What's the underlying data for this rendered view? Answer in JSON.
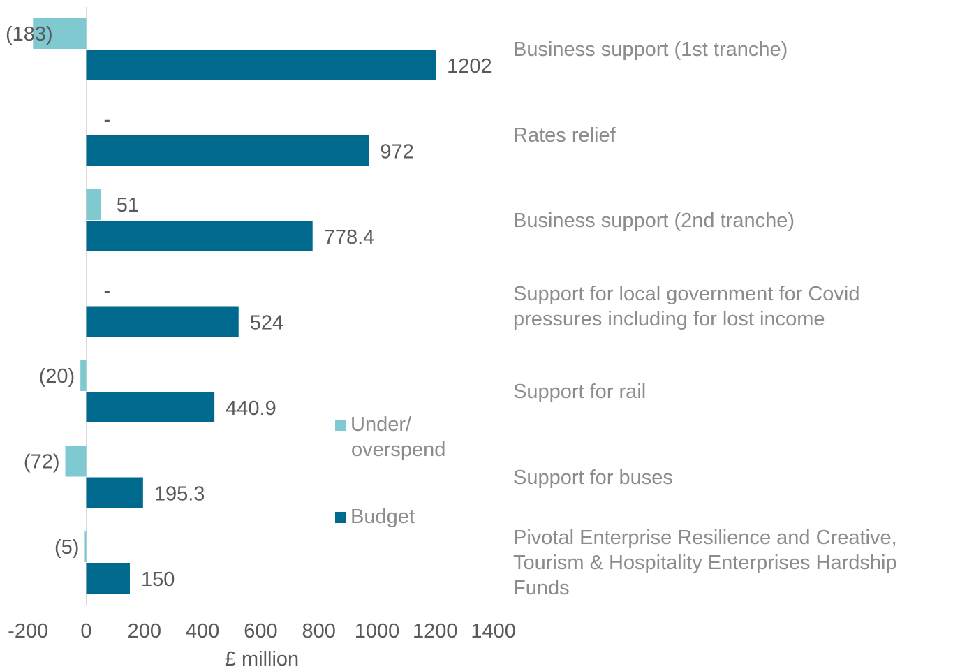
{
  "chart_data": {
    "type": "bar",
    "orientation": "horizontal",
    "categories": [
      "Business support (1st tranche)",
      "Rates relief",
      "Business support (2nd tranche)",
      "Support for local government for Covid pressures including for lost income",
      "Support for rail",
      "Support for buses",
      "Pivotal Enterprise Resilience and  Creative, Tourism & Hospitality Enterprises Hardship Funds"
    ],
    "category_label_lines": [
      [
        "Business support (1st tranche)"
      ],
      [
        "Rates relief"
      ],
      [
        "Business support (2nd tranche)"
      ],
      [
        "Support for local government for Covid",
        "pressures including for lost income"
      ],
      [
        "Support for rail"
      ],
      [
        "Support for buses"
      ],
      [
        "Pivotal Enterprise Resilience and  Creative,",
        "Tourism & Hospitality Enterprises Hardship",
        "Funds"
      ]
    ],
    "series": [
      {
        "name": "Under/ overspend",
        "legend_lines": [
          "Under/",
          "overspend"
        ],
        "values": [
          -183,
          0,
          51,
          0,
          -20,
          -72,
          -5
        ],
        "labels": [
          "(183)",
          "-",
          "51",
          "-",
          "(20)",
          "(72)",
          "(5)"
        ],
        "color": "#7fc9d1"
      },
      {
        "name": "Budget",
        "legend_lines": [
          "Budget"
        ],
        "values": [
          1202,
          972,
          778.4,
          524,
          440.9,
          195.3,
          150
        ],
        "labels": [
          "1202",
          "972",
          "778.4",
          "524",
          "440.9",
          "195.3",
          "150"
        ],
        "color": "#006a8e"
      }
    ],
    "xlabel": "£ million",
    "xlim": [
      -200,
      1400
    ],
    "xticks": [
      "-200",
      "0",
      "200",
      "400",
      "600",
      "800",
      "1000",
      "1200",
      "1400"
    ],
    "grid": false,
    "legend_position": "center"
  }
}
